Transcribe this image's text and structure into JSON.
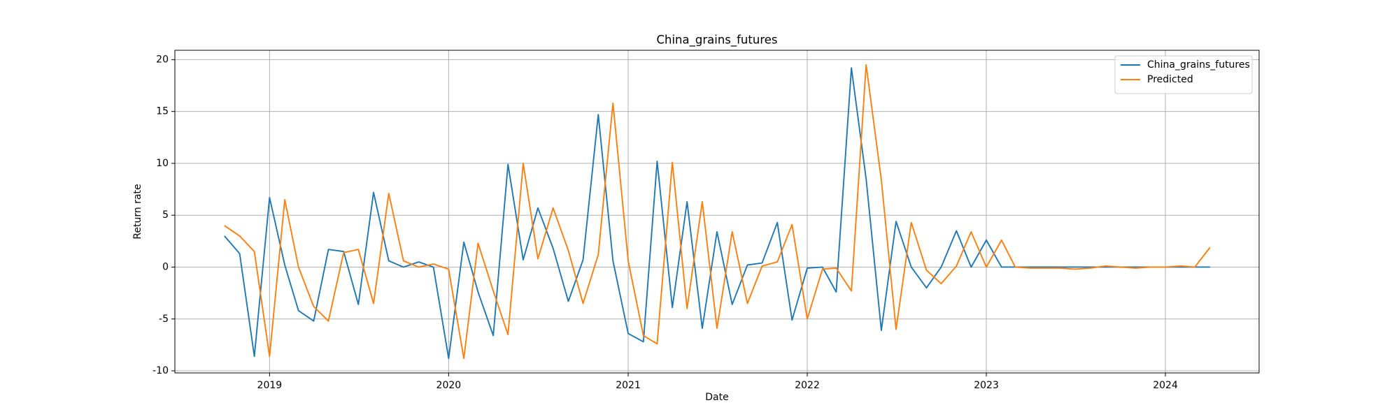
{
  "chart_data": {
    "type": "line",
    "title": "China_grains_futures",
    "x_label": "Date",
    "y_label": "Return rate",
    "x": [
      "2018-10",
      "2018-11",
      "2018-12",
      "2019-01",
      "2019-02",
      "2019-03",
      "2019-04",
      "2019-05",
      "2019-06",
      "2019-07",
      "2019-08",
      "2019-09",
      "2019-10",
      "2019-11",
      "2019-12",
      "2020-01",
      "2020-02",
      "2020-03",
      "2020-04",
      "2020-05",
      "2020-06",
      "2020-07",
      "2020-08",
      "2020-09",
      "2020-10",
      "2020-11",
      "2020-12",
      "2021-01",
      "2021-02",
      "2021-03",
      "2021-04",
      "2021-05",
      "2021-06",
      "2021-07",
      "2021-08",
      "2021-09",
      "2021-10",
      "2021-11",
      "2021-12",
      "2022-01",
      "2022-02",
      "2022-03",
      "2022-04",
      "2022-05",
      "2022-06",
      "2022-07",
      "2022-08",
      "2022-09",
      "2022-10",
      "2022-11",
      "2022-12",
      "2023-01",
      "2023-02",
      "2023-03",
      "2023-04",
      "2023-05",
      "2023-06",
      "2023-07",
      "2023-08",
      "2023-09",
      "2023-10",
      "2023-11",
      "2023-12",
      "2024-01",
      "2024-02",
      "2024-03",
      "2024-04"
    ],
    "series": [
      {
        "name": "China_grains_futures",
        "color": "#1f77b4",
        "values": [
          3.0,
          1.3,
          -8.6,
          6.7,
          0.2,
          -4.2,
          -5.2,
          1.7,
          1.5,
          -3.6,
          7.2,
          0.6,
          0.0,
          0.5,
          0.0,
          -8.8,
          2.4,
          -2.4,
          -6.6,
          9.9,
          0.7,
          5.7,
          1.8,
          -3.3,
          0.7,
          14.7,
          0.6,
          -6.4,
          -7.2,
          10.2,
          -3.9,
          6.3,
          -5.9,
          3.4,
          -3.6,
          0.2,
          0.4,
          4.3,
          -5.1,
          -0.1,
          0.0,
          -2.4,
          19.2,
          8.5,
          -6.1,
          4.4,
          0.0,
          -2.0,
          0.0,
          3.5,
          0.0,
          2.6,
          0.0,
          0.0,
          0.0,
          0.0,
          0.0,
          0.0,
          0.0,
          0.0,
          0.0,
          0.0,
          0.0,
          0.0,
          0.0,
          0.0,
          0.0
        ]
      },
      {
        "name": "Predicted",
        "color": "#ff7f0e",
        "values": [
          4.0,
          3.0,
          1.5,
          -8.6,
          6.5,
          0.0,
          -3.8,
          -5.2,
          1.4,
          1.7,
          -3.5,
          7.1,
          0.6,
          0.0,
          0.3,
          -0.2,
          -8.8,
          2.3,
          -2.3,
          -6.5,
          10.0,
          0.8,
          5.7,
          1.6,
          -3.5,
          1.2,
          15.8,
          0.6,
          -6.6,
          -7.4,
          10.1,
          -4.0,
          6.3,
          -5.9,
          3.4,
          -3.5,
          0.1,
          0.5,
          4.1,
          -5.0,
          -0.2,
          -0.1,
          -2.3,
          19.5,
          8.4,
          -6.0,
          4.3,
          -0.3,
          -1.6,
          0.1,
          3.4,
          0.0,
          2.6,
          0.0,
          -0.1,
          -0.1,
          -0.1,
          -0.2,
          -0.1,
          0.1,
          0.0,
          -0.1,
          0.0,
          0.0,
          0.1,
          0.0,
          1.9
        ]
      }
    ],
    "xlim": [
      "2018-06-22",
      "2024-07-10"
    ],
    "xticks": [
      {
        "value": "2019-01",
        "label": "2019"
      },
      {
        "value": "2020-01",
        "label": "2020"
      },
      {
        "value": "2021-01",
        "label": "2021"
      },
      {
        "value": "2022-01",
        "label": "2022"
      },
      {
        "value": "2023-01",
        "label": "2023"
      },
      {
        "value": "2024-01",
        "label": "2024"
      }
    ],
    "ylim": [
      -10.2,
      20.9
    ],
    "yticks": [
      -10,
      -5,
      0,
      5,
      10,
      15,
      20
    ],
    "grid": true,
    "legend": "upper right"
  }
}
